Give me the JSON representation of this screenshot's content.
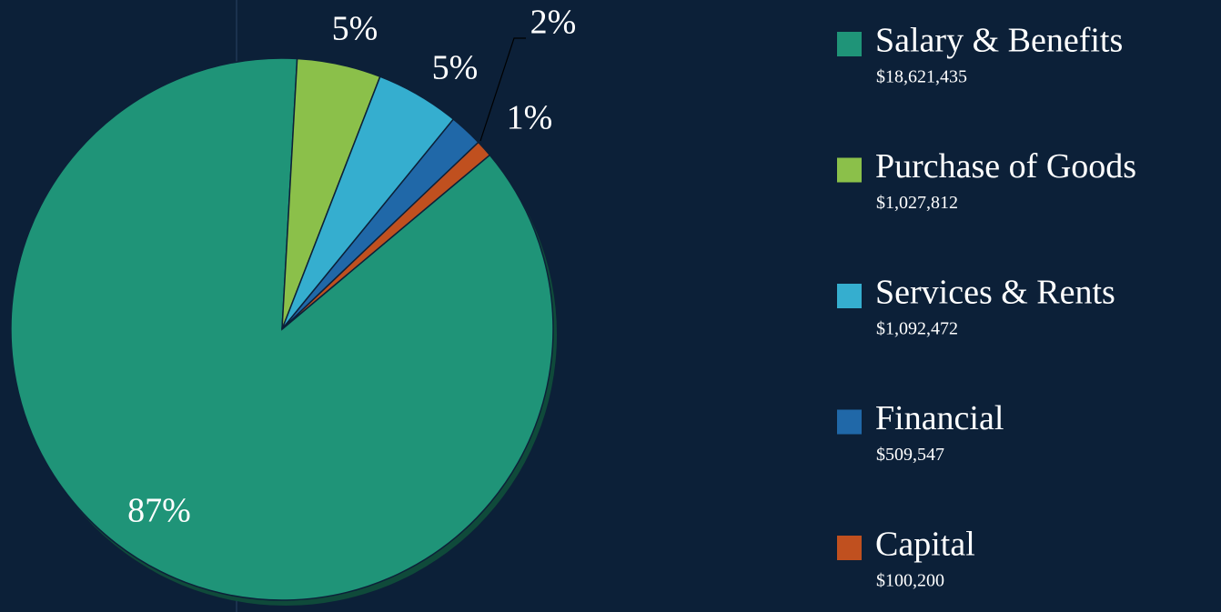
{
  "chart_data": {
    "type": "pie",
    "categories": [
      "Salary & Benefits",
      "Purchase of Goods",
      "Services & Rents",
      "Financial",
      "Capital"
    ],
    "values": [
      87,
      5,
      5,
      2,
      1
    ],
    "value_labels": [
      "87%",
      "5%",
      "5%",
      "2%",
      "1%"
    ],
    "colors": [
      "#1f9478",
      "#8bc04a",
      "#35aecf",
      "#2068a8",
      "#c0501f"
    ],
    "amounts": [
      18621435,
      1027812,
      1092472,
      509547,
      100200
    ],
    "amount_labels": [
      "$18,621,435",
      "$1,027,812",
      "$1,092,472",
      "$509,547",
      "$100,200"
    ],
    "legend": "right"
  }
}
